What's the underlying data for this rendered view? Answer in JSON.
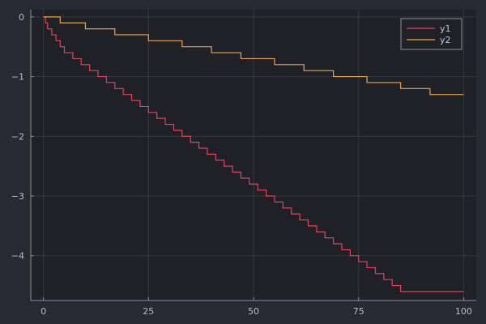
{
  "chart_data": {
    "type": "line",
    "title": "",
    "xlabel": "",
    "ylabel": "",
    "xlim": [
      -3,
      103
    ],
    "ylim": [
      -4.75,
      0.12
    ],
    "x_ticks": [
      0,
      25,
      50,
      75,
      100
    ],
    "x_tick_labels": [
      "0",
      "25",
      "50",
      "75",
      "100"
    ],
    "y_ticks": [
      0,
      -1,
      -2,
      -3,
      -4
    ],
    "y_tick_labels": [
      "0",
      "−1",
      "−2",
      "−3",
      "−4"
    ],
    "grid": true,
    "legend_position": "top-right",
    "step": "post",
    "series": [
      {
        "name": "y1",
        "color": "#e0435f",
        "x": [
          0,
          0.5,
          1,
          2,
          3,
          4,
          5,
          7,
          9,
          11,
          13,
          15,
          17,
          19,
          21,
          23,
          25,
          27,
          29,
          31,
          33,
          35,
          37,
          39,
          41,
          43,
          45,
          47,
          49,
          51,
          53,
          55,
          57,
          59,
          61,
          63,
          65,
          67,
          69,
          71,
          73,
          75,
          77,
          79,
          81,
          83,
          85,
          87,
          89,
          91,
          93,
          95,
          97,
          99,
          100
        ],
        "y": [
          0,
          -0.1,
          -0.2,
          -0.3,
          -0.4,
          -0.5,
          -0.6,
          -0.7,
          -0.8,
          -0.9,
          -1.0,
          -1.1,
          -1.2,
          -1.3,
          -1.4,
          -1.5,
          -1.6,
          -1.7,
          -1.8,
          -1.9,
          -2.0,
          -2.1,
          -2.2,
          -2.3,
          -2.4,
          -2.5,
          -2.6,
          -2.7,
          -2.8,
          -2.9,
          -3.0,
          -3.1,
          -3.2,
          -3.3,
          -3.4,
          -3.5,
          -3.6,
          -3.7,
          -3.8,
          -3.9,
          -4.0,
          -4.1,
          -4.2,
          -4.3,
          -4.4,
          -4.5,
          -4.6,
          -4.6,
          -4.6,
          -4.6,
          -4.6,
          -4.6,
          -4.6,
          -4.6,
          -4.6
        ]
      },
      {
        "name": "y2",
        "color": "#e8a552",
        "x": [
          0,
          4,
          10,
          17,
          25,
          33,
          40,
          47,
          55,
          62,
          69,
          77,
          85,
          92,
          100
        ],
        "y": [
          0,
          -0.1,
          -0.2,
          -0.3,
          -0.4,
          -0.5,
          -0.6,
          -0.7,
          -0.8,
          -0.9,
          -1.0,
          -1.1,
          -1.2,
          -1.3,
          -1.3
        ]
      }
    ]
  },
  "colors": {
    "background": "#282a33",
    "plot_background": "#1f2127",
    "axis": "#8a8e98",
    "grid": "#343740",
    "legend_border": "#8a8e98",
    "legend_background": "#1f2127"
  }
}
